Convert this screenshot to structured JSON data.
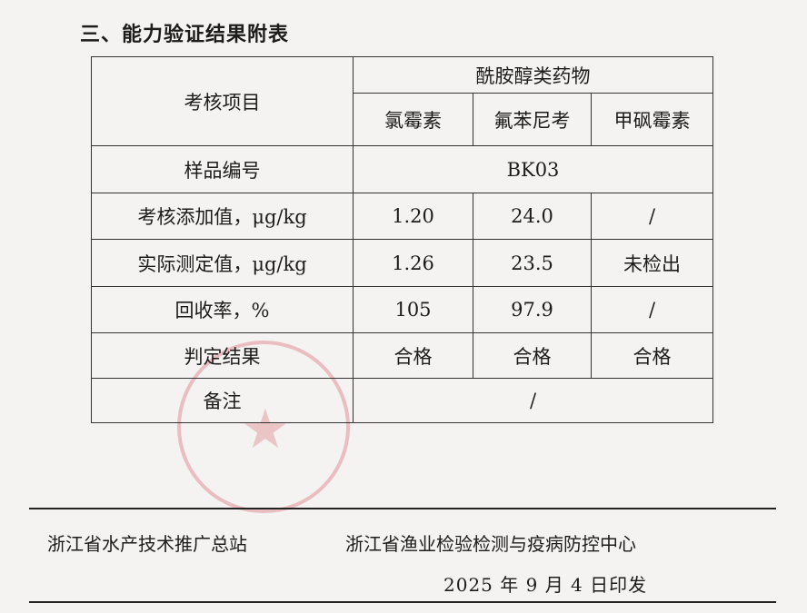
{
  "heading": "三、能力验证结果附表",
  "table": {
    "item_header": "考核项目",
    "group_header": "酰胺醇类药物",
    "drugs": [
      "氯霉素",
      "氟苯尼考",
      "甲砜霉素"
    ],
    "sample_label": "样品编号",
    "sample_id": "BK03",
    "rows": [
      {
        "label": "考核添加值，μg/kg",
        "values": [
          "1.20",
          "24.0",
          "/"
        ]
      },
      {
        "label": "实际测定值，μg/kg",
        "values": [
          "1.26",
          "23.5",
          "未检出"
        ]
      },
      {
        "label": "回收率，%",
        "values": [
          "105",
          "97.9",
          "/"
        ]
      },
      {
        "label": "判定结果",
        "values": [
          "合格",
          "合格",
          "合格"
        ]
      }
    ],
    "remark_label": "备注",
    "remark_value": "/"
  },
  "footer": {
    "issuer_1": "浙江省水产技术推广总站",
    "issuer_2": "浙江省渔业检验检测与疫病防控中心",
    "date": "2025 年 9 月 4 日印发"
  },
  "colors": {
    "stamp": "#d65a64"
  }
}
